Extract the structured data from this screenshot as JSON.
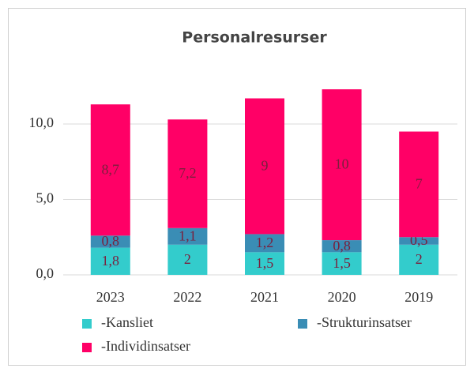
{
  "chart_data": {
    "type": "stacked-bar",
    "title": "Personalresurser",
    "categories": [
      "2023",
      "2022",
      "2021",
      "2020",
      "2019"
    ],
    "series": [
      {
        "name": "-Kansliet",
        "color": "#33cccc",
        "values": [
          1.8,
          2,
          1.5,
          1.5,
          2
        ],
        "value_labels": [
          "1,8",
          "2",
          "1,5",
          "1,5",
          "2"
        ]
      },
      {
        "name": "-Strukturinsatser",
        "color": "#3a8db5",
        "values": [
          0.8,
          1.1,
          1.2,
          0.8,
          0.5
        ],
        "value_labels": [
          "0,8",
          "1,1",
          "1,2",
          "0,8",
          "0,5"
        ]
      },
      {
        "name": "-Individinsatser",
        "color": "#ff0066",
        "values": [
          8.7,
          7.2,
          9,
          10,
          7
        ],
        "value_labels": [
          "8,7",
          "7,2",
          "9",
          "10",
          "7"
        ]
      }
    ],
    "ylim": [
      0,
      14
    ],
    "yticks": [
      {
        "value": 0,
        "label": "0,0"
      },
      {
        "value": 5,
        "label": "5,0"
      },
      {
        "value": 10,
        "label": "10,0"
      }
    ],
    "grid": true
  }
}
